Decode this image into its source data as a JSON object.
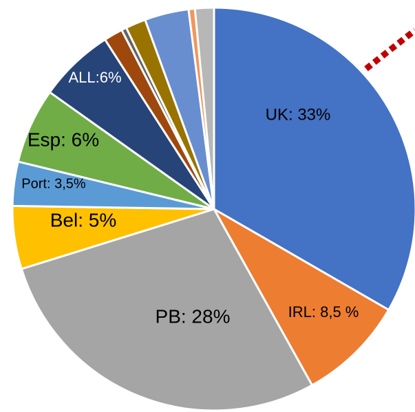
{
  "chart_data": {
    "type": "pie",
    "values": [
      33,
      8.5,
      28,
      5,
      3.5,
      6,
      6,
      1.5,
      0.4,
      1.6,
      3.5,
      0.5,
      1.5
    ],
    "value_labels": [
      "UK: 33%",
      "IRL: 8,5 %",
      "PB: 28%",
      "Bel: 5%",
      "Port: 3,5%",
      "Esp: 6%",
      "ALL:6%",
      null,
      null,
      null,
      null,
      null,
      null
    ],
    "colors": [
      "#4472c4",
      "#ed7d31",
      "#a5a5a5",
      "#ffc000",
      "#5b9bd5",
      "#70ad47",
      "#264478",
      "#9e480e",
      "#636363",
      "#997300",
      "#698ed0",
      "#f1975a",
      "#b7b7b7"
    ]
  }
}
